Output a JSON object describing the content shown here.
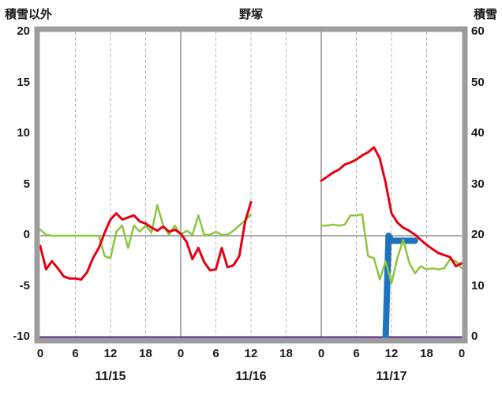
{
  "header": {
    "left_axis_title": "積雪以外",
    "station_name": "野塚",
    "right_axis_title": "積雪"
  },
  "chart_data": {
    "type": "line",
    "title": "野塚",
    "frame_color": "#9c9c9c",
    "grid_color": "#b4b4b4",
    "day_line_color": "#8f8f8f",
    "zero_line_color": "#8f8f8f",
    "x_axis": {
      "unit": "hour",
      "tick_hours": [
        0,
        6,
        12,
        18,
        24,
        30,
        36,
        42,
        48,
        54,
        60,
        66,
        72
      ],
      "tick_labels": [
        "0",
        "6",
        "12",
        "18",
        "0",
        "6",
        "12",
        "18",
        "0",
        "6",
        "12",
        "18",
        "0"
      ],
      "day_boundaries": [
        24,
        48
      ],
      "date_labels": [
        {
          "label": "11/15",
          "hour": 12
        },
        {
          "label": "11/16",
          "hour": 36
        },
        {
          "label": "11/17",
          "hour": 60
        }
      ]
    },
    "left_axis": {
      "title": "積雪以外",
      "range": [
        -10,
        20
      ],
      "ticks": [
        20,
        15,
        10,
        5,
        0,
        -5,
        -10
      ]
    },
    "right_axis": {
      "title": "積雪",
      "range": [
        0,
        60
      ],
      "ticks": [
        60,
        50,
        40,
        30,
        20,
        10,
        0
      ]
    },
    "series": [
      {
        "name": "purple-baseline",
        "color": "#5b2d8e",
        "axis": "right",
        "width": 3,
        "segments": [
          [
            [
              0,
              0
            ],
            [
              72,
              0
            ]
          ]
        ]
      },
      {
        "name": "blue-snow-depth",
        "color": "#1e73be",
        "axis": "right",
        "width": 8,
        "segments": [
          [
            [
              59,
              0
            ],
            [
              59.5,
              20
            ],
            [
              60,
              19
            ],
            [
              64,
              19
            ]
          ]
        ]
      },
      {
        "name": "green-line",
        "color": "#8cc63e",
        "axis": "left",
        "width": 2.5,
        "segments": [
          [
            [
              0,
              0.6
            ],
            [
              1,
              0.1
            ],
            [
              2,
              0
            ],
            [
              3,
              0
            ],
            [
              4,
              0
            ],
            [
              5,
              0
            ],
            [
              6,
              0
            ],
            [
              7,
              0
            ],
            [
              8,
              0
            ],
            [
              9,
              0
            ],
            [
              10,
              0
            ],
            [
              11,
              -2.0
            ],
            [
              12,
              -2.2
            ],
            [
              13,
              0.4
            ],
            [
              14,
              1.0
            ],
            [
              15,
              -1.2
            ],
            [
              16,
              1.0
            ],
            [
              17,
              0.4
            ],
            [
              18,
              1.0
            ],
            [
              19,
              0.3
            ],
            [
              20,
              3.0
            ],
            [
              21,
              1.0
            ],
            [
              22,
              0.1
            ],
            [
              23,
              1.0
            ],
            [
              24,
              0.1
            ],
            [
              25,
              0.5
            ],
            [
              26,
              0.1
            ],
            [
              27,
              2.0
            ],
            [
              28,
              0.1
            ],
            [
              29,
              0.1
            ],
            [
              30,
              0.4
            ],
            [
              31,
              0.1
            ],
            [
              32,
              0.1
            ],
            [
              33,
              0.5
            ],
            [
              34,
              1.0
            ],
            [
              35,
              1.5
            ],
            [
              36,
              2.1
            ]
          ],
          [
            [
              48,
              1.0
            ],
            [
              49,
              1.0
            ],
            [
              50,
              1.1
            ],
            [
              51,
              1.0
            ],
            [
              52,
              1.1
            ],
            [
              53,
              2.0
            ],
            [
              54,
              2.0
            ],
            [
              55,
              2.1
            ],
            [
              56,
              -2.0
            ],
            [
              57,
              -2.2
            ],
            [
              58,
              -4.3
            ],
            [
              59,
              -2.5
            ],
            [
              60,
              -4.7
            ],
            [
              61,
              -2.2
            ],
            [
              62,
              -0.4
            ],
            [
              63,
              -2.6
            ],
            [
              64,
              -3.7
            ],
            [
              65,
              -3.0
            ],
            [
              66,
              -3.3
            ],
            [
              67,
              -3.2
            ],
            [
              68,
              -3.3
            ],
            [
              69,
              -3.2
            ],
            [
              70,
              -2.3
            ],
            [
              71,
              -2.5
            ],
            [
              72,
              -3.2
            ]
          ]
        ]
      },
      {
        "name": "red-temperature",
        "color": "#e60013",
        "axis": "left",
        "width": 3,
        "segments": [
          [
            [
              0,
              -1.0
            ],
            [
              1,
              -3.3
            ],
            [
              2,
              -2.5
            ],
            [
              3,
              -3.2
            ],
            [
              4,
              -4.0
            ],
            [
              5,
              -4.2
            ],
            [
              6,
              -4.2
            ],
            [
              7,
              -4.3
            ],
            [
              8,
              -3.6
            ],
            [
              9,
              -2.2
            ],
            [
              10,
              -1.2
            ],
            [
              11,
              0.3
            ],
            [
              12,
              1.6
            ],
            [
              13,
              2.2
            ],
            [
              14,
              1.6
            ],
            [
              15,
              1.8
            ],
            [
              16,
              2.0
            ],
            [
              17,
              1.4
            ],
            [
              18,
              1.2
            ],
            [
              19,
              0.8
            ],
            [
              20,
              0.5
            ],
            [
              21,
              0.9
            ],
            [
              22,
              0.4
            ],
            [
              23,
              0.6
            ],
            [
              24,
              0.2
            ],
            [
              25,
              -0.6
            ],
            [
              26,
              -2.3
            ],
            [
              27,
              -1.2
            ],
            [
              28,
              -2.6
            ],
            [
              29,
              -3.4
            ],
            [
              30,
              -3.3
            ],
            [
              31,
              -1.2
            ],
            [
              32,
              -3.1
            ],
            [
              33,
              -2.9
            ],
            [
              34,
              -2.0
            ],
            [
              35,
              1.4
            ],
            [
              36,
              3.3
            ]
          ],
          [
            [
              48,
              5.4
            ],
            [
              49,
              5.8
            ],
            [
              50,
              6.2
            ],
            [
              51,
              6.5
            ],
            [
              52,
              7.0
            ],
            [
              53,
              7.2
            ],
            [
              54,
              7.5
            ],
            [
              55,
              7.9
            ],
            [
              56,
              8.2
            ],
            [
              57,
              8.7
            ],
            [
              58,
              7.6
            ],
            [
              59,
              5.2
            ],
            [
              60,
              2.2
            ],
            [
              61,
              1.3
            ],
            [
              62,
              0.8
            ],
            [
              63,
              0.5
            ],
            [
              64,
              0.1
            ],
            [
              65,
              -0.4
            ],
            [
              66,
              -0.9
            ],
            [
              67,
              -1.3
            ],
            [
              68,
              -1.7
            ],
            [
              69,
              -1.9
            ],
            [
              70,
              -2.1
            ],
            [
              71,
              -3.0
            ],
            [
              72,
              -2.7
            ]
          ]
        ]
      }
    ]
  }
}
